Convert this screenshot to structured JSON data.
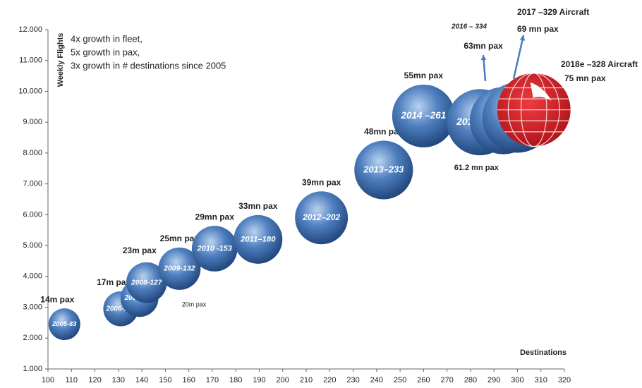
{
  "chart_data": {
    "type": "bubble",
    "y_label": "Weekly Flights",
    "x_label": "Destinations",
    "annotations": [
      "4x growth in fleet,",
      "5x growth in pax,",
      "3x growth in # destinations since 2005"
    ],
    "xlim": [
      100,
      320
    ],
    "xticks": [
      100,
      110,
      120,
      130,
      140,
      150,
      160,
      170,
      180,
      190,
      200,
      210,
      220,
      230,
      240,
      250,
      260,
      270,
      280,
      290,
      300,
      310,
      320
    ],
    "ylim": [
      1000,
      12000
    ],
    "yticks": [
      {
        "value": 1000,
        "label": "1.000"
      },
      {
        "value": 2000,
        "label": "2.000"
      },
      {
        "value": 3000,
        "label": "3.000"
      },
      {
        "value": 4000,
        "label": "4.000"
      },
      {
        "value": 5000,
        "label": "5.000"
      },
      {
        "value": 6000,
        "label": "6.000"
      },
      {
        "value": 7000,
        "label": "7.000"
      },
      {
        "value": 8000,
        "label": "8.000"
      },
      {
        "value": 9000,
        "label": "9.000"
      },
      {
        "value": 10000,
        "label": "10.000"
      },
      {
        "value": 11000,
        "label": "11.000"
      },
      {
        "value": 12000,
        "label": "12.000"
      }
    ],
    "points": [
      {
        "label": "2005-83",
        "pax": "14m pax",
        "x": 107,
        "y": 2450,
        "size": 14
      },
      {
        "label": "2006-103",
        "pax": "17m pax",
        "x": 131,
        "y": 2950,
        "size": 17
      },
      {
        "label": "2007-101",
        "pax": "20m pax",
        "x": 139,
        "y": 3300,
        "size": 20
      },
      {
        "label": "2008-127",
        "pax": "23m pax",
        "x": 142,
        "y": 3800,
        "size": 23
      },
      {
        "label": "2009-132",
        "pax": "25mn pax",
        "x": 156,
        "y": 4250,
        "size": 25
      },
      {
        "label": "2010 -153",
        "pax": "29mn pax",
        "x": 171,
        "y": 4900,
        "size": 29
      },
      {
        "label": "2011–180",
        "pax": "33mn pax",
        "x": 189.5,
        "y": 5200,
        "size": 33
      },
      {
        "label": "2012–202",
        "pax": "39mn pax",
        "x": 216.5,
        "y": 5900,
        "size": 39
      },
      {
        "label": "2013–233",
        "pax": "48mn pax",
        "x": 243,
        "y": 7450,
        "size": 48
      },
      {
        "label": "2014 –261",
        "pax": "55mn pax",
        "x": 260,
        "y": 9200,
        "size": 55
      },
      {
        "label": "2015 –299",
        "pax": "61.2 mn pax",
        "x": 284,
        "y": 9000,
        "size": 61.2
      },
      {
        "label": "2016 – 334",
        "pax": "63mn pax",
        "x": 294,
        "y": 9050,
        "size": 63
      },
      {
        "label": "2017 –329 Aircraft",
        "pax": "69 mn pax",
        "x": 300,
        "y": 9150,
        "size": 69
      },
      {
        "label": "2018e –328 Aircraft",
        "pax": "75 mn pax",
        "x": 307,
        "y": 9400,
        "size": 75
      }
    ]
  }
}
